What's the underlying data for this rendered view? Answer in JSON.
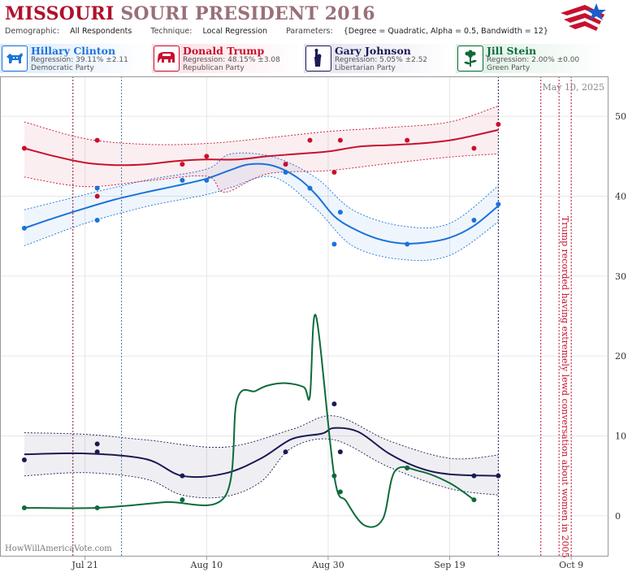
{
  "header": {
    "title_state": "MISSOURI",
    "title_rest": "SOURI PRESIDENT 2016",
    "demographic_label": "Demographic:",
    "demographic_value": "All Respondents",
    "technique_label": "Technique:",
    "technique_value": "Local Regression",
    "parameters_label": "Parameters:",
    "parameters_value": "{Degree = Quadratic, Alpha = 0.5, Bandwidth = 12}"
  },
  "legend": [
    {
      "name": "Hillary Clinton",
      "regression": "Regression: 39.11% ±2.11",
      "party": "Democratic Party",
      "color": "#1a73d9",
      "icon": "donkey-icon"
    },
    {
      "name": "Donald Trump",
      "regression": "Regression: 48.15% ±3.08",
      "party": "Republican Party",
      "color": "#c8102e",
      "icon": "elephant-icon"
    },
    {
      "name": "Gary Johnson",
      "regression": "Regression: 5.05% ±2.52",
      "party": "Libertarian Party",
      "color": "#1b1a55",
      "icon": "liberty-torch-icon"
    },
    {
      "name": "Jill Stein",
      "regression": "Regression: 2.00% ±0.00",
      "party": "Green Party",
      "color": "#0d6b3a",
      "icon": "flower-icon"
    }
  ],
  "chart_data": {
    "type": "line",
    "date_label": "May 10, 2025",
    "watermark": "HowWillAmericaVote.com",
    "x_ticks": [
      "Jul 21",
      "Aug 10",
      "Aug 30",
      "Sep 19",
      "Oct 9"
    ],
    "y_ticks": [
      0,
      10,
      20,
      30,
      40,
      50
    ],
    "ylim": [
      -5,
      55
    ],
    "xlim": [
      "2016-07-07",
      "2016-10-15"
    ],
    "event_annotation": "Trump recorded having extremely lewd conversation about women in 2005",
    "event_date": "2016-10-07",
    "series": [
      {
        "name": "Hillary Clinton",
        "color": "#1a73d9",
        "points": [
          [
            "2016-07-11",
            36
          ],
          [
            "2016-07-23",
            41
          ],
          [
            "2016-07-23",
            37
          ],
          [
            "2016-08-06",
            42
          ],
          [
            "2016-08-10",
            42
          ],
          [
            "2016-08-23",
            43
          ],
          [
            "2016-08-27",
            41
          ],
          [
            "2016-08-31",
            34
          ],
          [
            "2016-09-01",
            38
          ],
          [
            "2016-09-12",
            34
          ],
          [
            "2016-09-23",
            37
          ],
          [
            "2016-09-27",
            39
          ]
        ],
        "trend": [
          [
            "2016-07-11",
            36
          ],
          [
            "2016-07-16",
            37.3
          ],
          [
            "2016-07-21",
            38.5
          ],
          [
            "2016-07-26",
            39.6
          ],
          [
            "2016-07-31",
            40.5
          ],
          [
            "2016-08-05",
            41.3
          ],
          [
            "2016-08-10",
            42.2
          ],
          [
            "2016-08-14",
            43.3
          ],
          [
            "2016-08-17",
            44
          ],
          [
            "2016-08-21",
            43.8
          ],
          [
            "2016-08-25",
            42.3
          ],
          [
            "2016-08-28",
            40.2
          ],
          [
            "2016-08-31",
            37.5
          ],
          [
            "2016-09-03",
            36
          ],
          [
            "2016-09-07",
            34.7
          ],
          [
            "2016-09-11",
            34.1
          ],
          [
            "2016-09-15",
            34.2
          ],
          [
            "2016-09-19",
            34.8
          ],
          [
            "2016-09-23",
            36.3
          ],
          [
            "2016-09-27",
            38.8
          ]
        ],
        "band_upper": [
          [
            "2016-07-11",
            38.3
          ],
          [
            "2016-07-21",
            40.2
          ],
          [
            "2016-07-31",
            42
          ],
          [
            "2016-08-10",
            43.4
          ],
          [
            "2016-08-14",
            45.3
          ],
          [
            "2016-08-21",
            44.9
          ],
          [
            "2016-08-28",
            42.3
          ],
          [
            "2016-09-03",
            38.3
          ],
          [
            "2016-09-11",
            36.3
          ],
          [
            "2016-09-19",
            36.6
          ],
          [
            "2016-09-27",
            41.3
          ]
        ],
        "band_lower": [
          [
            "2016-07-11",
            33.8
          ],
          [
            "2016-07-21",
            36.6
          ],
          [
            "2016-07-31",
            38.7
          ],
          [
            "2016-08-10",
            40.2
          ],
          [
            "2016-08-14",
            41.1
          ],
          [
            "2016-08-21",
            42.4
          ],
          [
            "2016-08-28",
            38.4
          ],
          [
            "2016-09-03",
            33.8
          ],
          [
            "2016-09-11",
            32.1
          ],
          [
            "2016-09-19",
            32.6
          ],
          [
            "2016-09-27",
            36.8
          ]
        ]
      },
      {
        "name": "Donald Trump",
        "color": "#c8102e",
        "points": [
          [
            "2016-07-11",
            46
          ],
          [
            "2016-07-23",
            47
          ],
          [
            "2016-07-23",
            40
          ],
          [
            "2016-08-06",
            44
          ],
          [
            "2016-08-10",
            45
          ],
          [
            "2016-08-23",
            44
          ],
          [
            "2016-08-27",
            47
          ],
          [
            "2016-08-31",
            43
          ],
          [
            "2016-09-01",
            47
          ],
          [
            "2016-09-12",
            47
          ],
          [
            "2016-09-23",
            46
          ],
          [
            "2016-09-27",
            49
          ]
        ],
        "trend": [
          [
            "2016-07-11",
            46
          ],
          [
            "2016-07-16",
            45
          ],
          [
            "2016-07-21",
            44.2
          ],
          [
            "2016-07-26",
            43.9
          ],
          [
            "2016-07-31",
            44
          ],
          [
            "2016-08-05",
            44.4
          ],
          [
            "2016-08-10",
            44.6
          ],
          [
            "2016-08-15",
            44.6
          ],
          [
            "2016-08-20",
            45
          ],
          [
            "2016-08-25",
            45.3
          ],
          [
            "2016-08-30",
            45.6
          ],
          [
            "2016-09-04",
            46.2
          ],
          [
            "2016-09-09",
            46.4
          ],
          [
            "2016-09-14",
            46.6
          ],
          [
            "2016-09-19",
            47
          ],
          [
            "2016-09-23",
            47.6
          ],
          [
            "2016-09-27",
            48.3
          ]
        ],
        "band_upper": [
          [
            "2016-07-11",
            49.3
          ],
          [
            "2016-07-21",
            47.2
          ],
          [
            "2016-07-31",
            46.5
          ],
          [
            "2016-08-10",
            46.6
          ],
          [
            "2016-08-20",
            47.3
          ],
          [
            "2016-08-30",
            48.1
          ],
          [
            "2016-09-09",
            48.6
          ],
          [
            "2016-09-19",
            49.3
          ],
          [
            "2016-09-27",
            51.3
          ]
        ],
        "band_lower": [
          [
            "2016-07-11",
            42.4
          ],
          [
            "2016-07-21",
            41.2
          ],
          [
            "2016-07-31",
            41.9
          ],
          [
            "2016-08-10",
            42.5
          ],
          [
            "2016-08-13",
            40.5
          ],
          [
            "2016-08-20",
            42.8
          ],
          [
            "2016-08-30",
            43.2
          ],
          [
            "2016-09-09",
            44.1
          ],
          [
            "2016-09-19",
            44.9
          ],
          [
            "2016-09-27",
            45.3
          ]
        ]
      },
      {
        "name": "Gary Johnson",
        "color": "#1b1a55",
        "points": [
          [
            "2016-07-11",
            7
          ],
          [
            "2016-07-23",
            9
          ],
          [
            "2016-07-23",
            8
          ],
          [
            "2016-08-06",
            5
          ],
          [
            "2016-08-23",
            8
          ],
          [
            "2016-08-31",
            14
          ],
          [
            "2016-09-01",
            8
          ],
          [
            "2016-09-12",
            6
          ],
          [
            "2016-09-23",
            5
          ],
          [
            "2016-09-27",
            5
          ]
        ],
        "trend": [
          [
            "2016-07-11",
            7.7
          ],
          [
            "2016-07-21",
            7.8
          ],
          [
            "2016-07-31",
            7.1
          ],
          [
            "2016-08-06",
            5
          ],
          [
            "2016-08-13",
            5.3
          ],
          [
            "2016-08-19",
            7.2
          ],
          [
            "2016-08-24",
            9.6
          ],
          [
            "2016-08-29",
            10.3
          ],
          [
            "2016-08-31",
            11
          ],
          [
            "2016-09-04",
            10.5
          ],
          [
            "2016-09-09",
            7.8
          ],
          [
            "2016-09-14",
            6
          ],
          [
            "2016-09-19",
            5.2
          ],
          [
            "2016-09-27",
            5
          ]
        ],
        "band_upper": [
          [
            "2016-07-11",
            10.4
          ],
          [
            "2016-07-21",
            10.2
          ],
          [
            "2016-07-31",
            9.5
          ],
          [
            "2016-08-13",
            8.6
          ],
          [
            "2016-08-24",
            10.8
          ],
          [
            "2016-08-31",
            12.5
          ],
          [
            "2016-09-09",
            9.4
          ],
          [
            "2016-09-19",
            7.2
          ],
          [
            "2016-09-27",
            7.6
          ]
        ],
        "band_lower": [
          [
            "2016-07-11",
            5
          ],
          [
            "2016-07-21",
            5.4
          ],
          [
            "2016-07-31",
            4.6
          ],
          [
            "2016-08-06",
            2.6
          ],
          [
            "2016-08-13",
            2.4
          ],
          [
            "2016-08-19",
            4.3
          ],
          [
            "2016-08-24",
            8.5
          ],
          [
            "2016-08-31",
            9.5
          ],
          [
            "2016-09-09",
            6.1
          ],
          [
            "2016-09-19",
            3.4
          ],
          [
            "2016-09-27",
            2.6
          ]
        ]
      },
      {
        "name": "Jill Stein",
        "color": "#0d6b3a",
        "points": [
          [
            "2016-07-11",
            1
          ],
          [
            "2016-07-23",
            1
          ],
          [
            "2016-08-06",
            2
          ],
          [
            "2016-08-31",
            5
          ],
          [
            "2016-09-01",
            3
          ],
          [
            "2016-09-12",
            6
          ],
          [
            "2016-09-23",
            2
          ]
        ],
        "trend": [
          [
            "2016-07-11",
            1
          ],
          [
            "2016-07-23",
            1
          ],
          [
            "2016-08-03",
            1.7
          ],
          [
            "2016-08-13",
            2.4
          ],
          [
            "2016-08-15",
            14.5
          ],
          [
            "2016-08-18",
            15.6
          ],
          [
            "2016-08-20",
            16.3
          ],
          [
            "2016-08-23",
            16.6
          ],
          [
            "2016-08-26",
            16.1
          ],
          [
            "2016-08-27",
            15
          ],
          [
            "2016-08-28",
            25
          ],
          [
            "2016-08-31",
            5
          ],
          [
            "2016-09-02",
            1.8
          ],
          [
            "2016-09-05",
            -1.2
          ],
          [
            "2016-09-08",
            -0.4
          ],
          [
            "2016-09-10",
            5.6
          ],
          [
            "2016-09-14",
            5.6
          ],
          [
            "2016-09-19",
            4.1
          ],
          [
            "2016-09-23",
            2
          ]
        ]
      }
    ],
    "vertical_markers": [
      {
        "date": "2016-07-19",
        "color": "#8b1230"
      },
      {
        "date": "2016-07-27",
        "color": "#3a7a9c"
      },
      {
        "date": "2016-09-27",
        "color": "#1b1a55"
      },
      {
        "date": "2016-10-04",
        "color": "#c8102e"
      },
      {
        "date": "2016-10-07",
        "color": "#c8102e"
      },
      {
        "date": "2016-10-09",
        "color": "#c8102e"
      }
    ]
  }
}
